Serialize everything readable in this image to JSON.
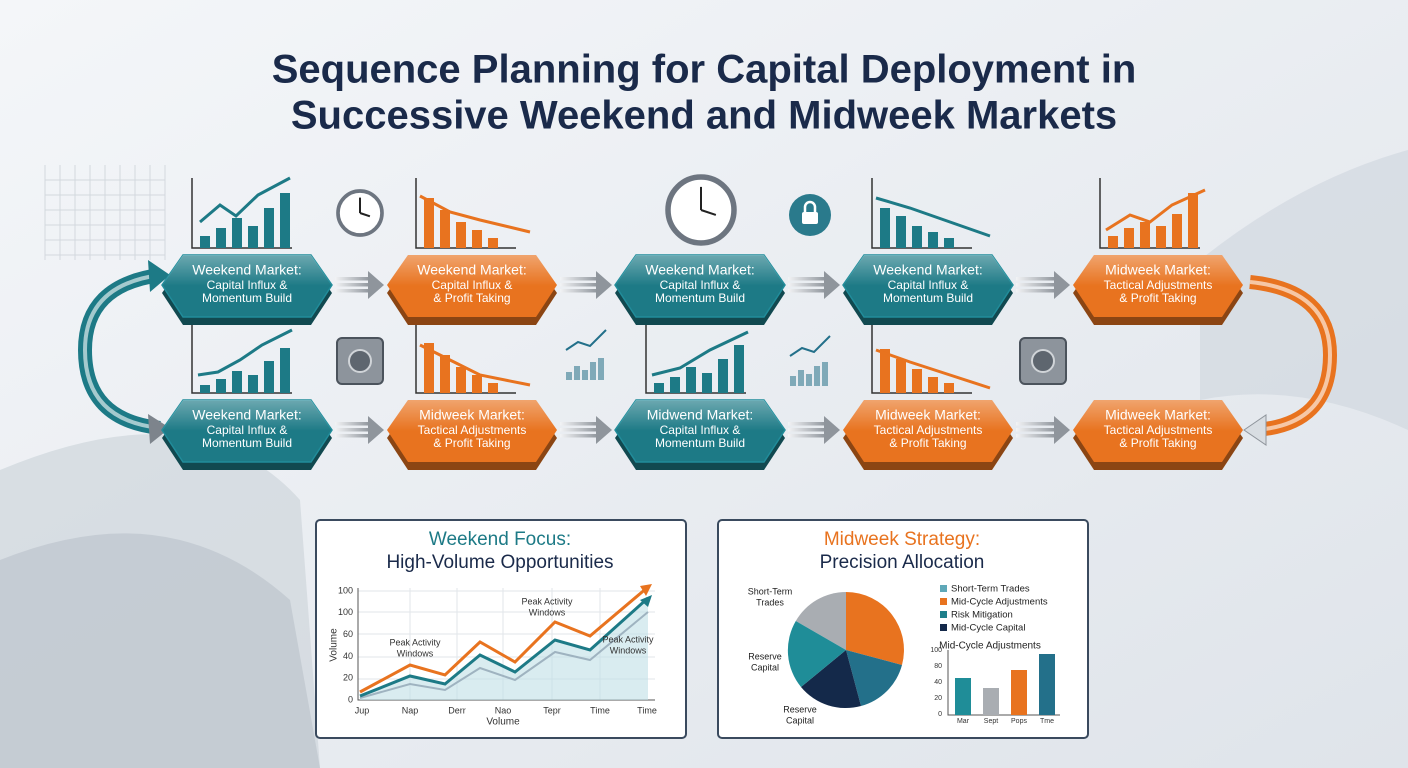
{
  "title": {
    "lines": [
      "Sequence Planning for Capital Deployment in",
      "Successive Weekend and Midweek Markets"
    ]
  },
  "nodes": [
    {
      "title": "Weekend Market:",
      "lines": [
        "Capital Influx &",
        "Momentum Build"
      ],
      "color": "#1d7a86"
    },
    {
      "title": "Weekend Market:",
      "lines": [
        "Capital Influx &",
        "& Profit Taking"
      ],
      "color": "#e8731f"
    },
    {
      "title": "Weekend Market:",
      "lines": [
        "Capital Influx &",
        "Momentum Build"
      ],
      "color": "#1d7a86"
    },
    {
      "title": "Weekend Market:",
      "lines": [
        "Capital Influx &",
        "Momentum Build"
      ],
      "color": "#1d7a86"
    },
    {
      "title": "Midweek Market:",
      "lines": [
        "Tactical Adjustments",
        "& Profit Taking"
      ],
      "color": "#e8731f"
    },
    {
      "title": "Weekend Market:",
      "lines": [
        "Capital Influx &",
        "Momentum Build"
      ],
      "color": "#1d7a86"
    },
    {
      "title": "Midweek Market:",
      "lines": [
        "Tactical Adjustments",
        "& Profit Taking"
      ],
      "color": "#e8731f"
    },
    {
      "title": "Midwend Market:",
      "lines": [
        "Capital Influx &",
        "Momentum Build"
      ],
      "color": "#1d7a86"
    },
    {
      "title": "Midweek Market:",
      "lines": [
        "Tactical Adjustments",
        "& Profit Taking"
      ],
      "color": "#e8731f"
    },
    {
      "title": "Midweek Market:",
      "lines": [
        "Tactical Adjustments",
        "& Profit Taking"
      ],
      "color": "#e8731f"
    }
  ],
  "panels": [
    {
      "title": [
        "Weekend Focus:",
        "High-Volume Opportunities"
      ],
      "y_axis_label": "Volume",
      "x_axis_label": "Volume",
      "y_labels": [
        "100",
        "100",
        "60",
        "40",
        "20",
        "0"
      ],
      "x_labels": [
        "Jup",
        "Nap",
        "Derr",
        "Nao",
        "Tepr",
        "Time",
        "Time"
      ],
      "annotations": [
        [
          "Peak Activity",
          "Windows"
        ],
        [
          "Peak Activity",
          "Windows"
        ],
        [
          "Peak Activity",
          "Windows"
        ]
      ]
    },
    {
      "title": [
        "Midweek Strategy:",
        "Precision Allocation"
      ],
      "pie_labels": [
        [
          "Short-Term",
          "Trades"
        ],
        [
          "Reserve",
          "Capital"
        ],
        [
          "Reserve",
          "Capital"
        ]
      ],
      "legend": [
        "Short-Term Trades",
        "Mid-Cycle Adjustments",
        "Risk Mitigation",
        "Mid-Cycle Capital"
      ],
      "bar_title": "Mid-Cycle Adjustments",
      "y_labels": [
        "100",
        "80",
        "40",
        "20",
        "0"
      ],
      "x_labels": [
        "Mar",
        "Sept",
        "Pops",
        "Tme"
      ]
    }
  ]
}
